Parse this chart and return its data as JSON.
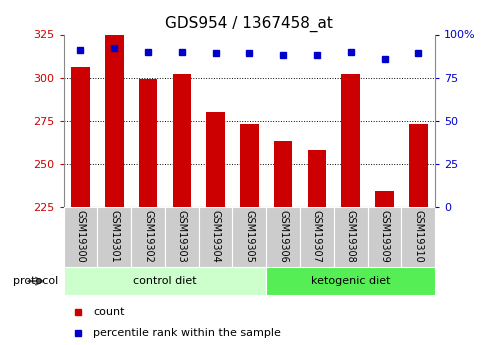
{
  "title": "GDS954 / 1367458_at",
  "samples": [
    "GSM19300",
    "GSM19301",
    "GSM19302",
    "GSM19303",
    "GSM19304",
    "GSM19305",
    "GSM19306",
    "GSM19307",
    "GSM19308",
    "GSM19309",
    "GSM19310"
  ],
  "counts": [
    306,
    325,
    299,
    302,
    280,
    273,
    263,
    258,
    302,
    234,
    273
  ],
  "percentile_ranks": [
    91,
    92,
    90,
    90,
    89,
    89,
    88,
    88,
    90,
    86,
    89
  ],
  "ylim_left": [
    225,
    325
  ],
  "ylim_right": [
    0,
    100
  ],
  "yticks_left": [
    225,
    250,
    275,
    300,
    325
  ],
  "yticks_right": [
    0,
    25,
    50,
    75,
    100
  ],
  "groups": [
    {
      "label": "control diet",
      "indices": [
        0,
        1,
        2,
        3,
        4,
        5
      ],
      "color": "#ccffcc"
    },
    {
      "label": "ketogenic diet",
      "indices": [
        6,
        7,
        8,
        9,
        10
      ],
      "color": "#55ee55"
    }
  ],
  "bar_color": "#cc0000",
  "dot_color": "#0000cc",
  "bar_width": 0.55,
  "tick_label_color_left": "#cc0000",
  "tick_label_color_right": "#0000cc",
  "sample_bg_color": "#cccccc",
  "protocol_label": "protocol",
  "legend_count": "count",
  "legend_percentile": "percentile rank within the sample",
  "title_fontsize": 11,
  "axis_fontsize": 8,
  "sample_fontsize": 7,
  "group_fontsize": 8,
  "legend_fontsize": 8
}
